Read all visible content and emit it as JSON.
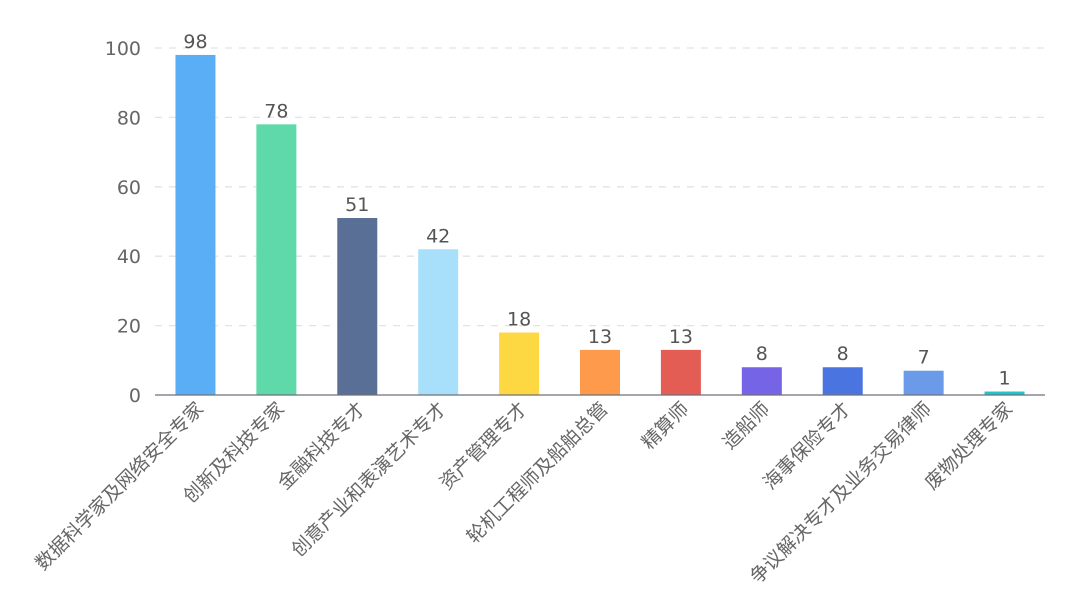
{
  "chart_data": {
    "type": "bar",
    "categories": [
      "数据科学家及网络安全专家",
      "创新及科技专家",
      "金融科技专才",
      "创意产业和表演艺术专才",
      "资产管理专才",
      "轮机工程师及船舶总管",
      "精算师",
      "造船师",
      "海事保险专才",
      "争议解决专才及业务交易律师",
      "废物处理专家"
    ],
    "values": [
      98,
      78,
      51,
      42,
      18,
      13,
      13,
      8,
      8,
      7,
      1
    ],
    "colors": [
      "#5aaef5",
      "#5fd9aa",
      "#5a6f96",
      "#a8e0fb",
      "#fdd843",
      "#fd9a4c",
      "#e45d54",
      "#7565e6",
      "#4a74e0",
      "#6b9ae8",
      "#22c4cc"
    ],
    "title": "",
    "xlabel": "",
    "ylabel": "",
    "ylim": [
      0,
      100
    ],
    "yticks": [
      0,
      20,
      40,
      60,
      80,
      100
    ],
    "grid": true,
    "data_labels": true
  }
}
